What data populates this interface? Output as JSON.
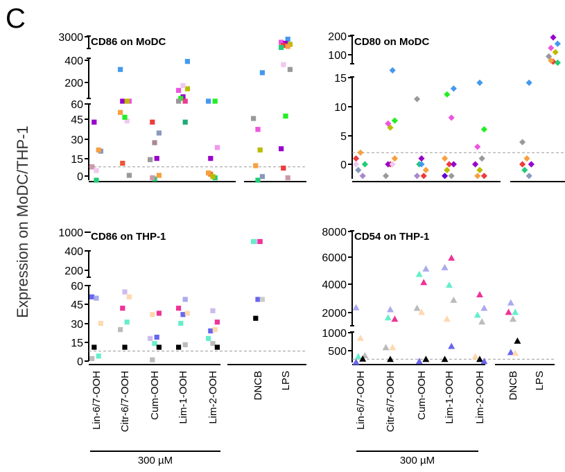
{
  "figure": {
    "panel_letter": "C",
    "ylabel": "Expression on MoDC/THP-1",
    "bracket_label": "300 µM",
    "categories": [
      "Lin-6/7-OOH",
      "Citr-6/7-OOH",
      "Cum-OOH",
      "Lim-1-OOH",
      "Lim-2-OOH",
      "DNCB",
      "LPS"
    ]
  },
  "chart_data": [
    {
      "type": "scatter",
      "title": "CD86 on MoDC",
      "marker": "square",
      "categories": [
        "Lin-6/7-OOH",
        "Citr-6/7-OOH",
        "Cum-OOH",
        "Lim-1-OOH",
        "Lim-2-OOH",
        "DNCB",
        "LPS"
      ],
      "y_axis_segments": [
        {
          "ticks": [
            0,
            15,
            30,
            45,
            60
          ]
        },
        {
          "ticks": [
            200,
            400
          ]
        },
        {
          "ticks": [
            3000
          ]
        }
      ],
      "threshold": 8,
      "points": [
        {
          "c": 0,
          "y": 8,
          "color": "#ee3b3b"
        },
        {
          "c": 0,
          "y": -3,
          "color": "#22cc77"
        },
        {
          "c": 0,
          "y": 21,
          "color": "#8899bb"
        },
        {
          "c": 0,
          "y": 45,
          "color": "#9900cc"
        },
        {
          "c": 0,
          "y": 22,
          "color": "#f7a040"
        },
        {
          "c": 0,
          "y": 8,
          "color": "#cc99aa"
        },
        {
          "c": 0,
          "y": 5,
          "color": "#f0c8f0"
        },
        {
          "c": 1,
          "y": 1,
          "color": "#999999"
        },
        {
          "c": 1,
          "y": 11,
          "color": "#ee5533"
        },
        {
          "c": 1,
          "y": 46,
          "color": "#f0c8f0"
        },
        {
          "c": 1,
          "y": 53,
          "color": "#f7a040"
        },
        {
          "c": 1,
          "y": 49,
          "color": "#22ee22"
        },
        {
          "c": 1,
          "y": 120,
          "color": "#ee55dd"
        },
        {
          "c": 1,
          "y": 95,
          "color": "#9900cc"
        },
        {
          "c": 1,
          "y": 95,
          "color": "#bbbb00"
        },
        {
          "c": 1,
          "y": 330,
          "color": "#4499ee"
        },
        {
          "c": 2,
          "y": -2,
          "color": "#22cc77"
        },
        {
          "c": 2,
          "y": 1,
          "color": "#f7a040"
        },
        {
          "c": 2,
          "y": -1,
          "color": "#cc99aa"
        },
        {
          "c": 2,
          "y": 15,
          "color": "#9900cc"
        },
        {
          "c": 2,
          "y": 14,
          "color": "#999999"
        },
        {
          "c": 2,
          "y": 28,
          "color": "#aa8899"
        },
        {
          "c": 2,
          "y": 36,
          "color": "#8899bb"
        },
        {
          "c": 2,
          "y": 45,
          "color": "#ee3b3b"
        },
        {
          "c": 3,
          "y": 45,
          "color": "#22aa77"
        },
        {
          "c": 3,
          "y": 200,
          "color": "#ee55dd"
        },
        {
          "c": 3,
          "y": 160,
          "color": "#9900cc"
        },
        {
          "c": 3,
          "y": 210,
          "color": "#bbbb00"
        },
        {
          "c": 3,
          "y": 150,
          "color": "#22ee22"
        },
        {
          "c": 3,
          "y": 110,
          "color": "#ee3b8b"
        },
        {
          "c": 3,
          "y": 100,
          "color": "#999999"
        },
        {
          "c": 3,
          "y": 230,
          "color": "#f0c8f0"
        },
        {
          "c": 3,
          "y": 380,
          "color": "#4499ee"
        },
        {
          "c": 4,
          "y": 2,
          "color": "#ee7733"
        },
        {
          "c": 4,
          "y": -1,
          "color": "#22cc77"
        },
        {
          "c": 4,
          "y": 3,
          "color": "#f7a040"
        },
        {
          "c": 4,
          "y": 0,
          "color": "#bbbb00"
        },
        {
          "c": 4,
          "y": 24,
          "color": "#ee99ee"
        },
        {
          "c": 4,
          "y": 15,
          "color": "#9900cc"
        },
        {
          "c": 4,
          "y": 100,
          "color": "#22ee22"
        },
        {
          "c": 4,
          "y": 110,
          "color": "#4499ee"
        },
        {
          "c": 5,
          "y": -3,
          "color": "#22cc77"
        },
        {
          "c": 5,
          "y": 0,
          "color": "#8899bb"
        },
        {
          "c": 5,
          "y": 9,
          "color": "#f7a040"
        },
        {
          "c": 5,
          "y": 22,
          "color": "#bbbb00"
        },
        {
          "c": 5,
          "y": 48,
          "color": "#999999"
        },
        {
          "c": 5,
          "y": 39,
          "color": "#ee55dd"
        },
        {
          "c": 5,
          "y": 310,
          "color": "#4499ee"
        },
        {
          "c": 6,
          "y": 7,
          "color": "#ee3b3b"
        },
        {
          "c": 6,
          "y": -1,
          "color": "#cc99aa"
        },
        {
          "c": 6,
          "y": 23,
          "color": "#9900cc"
        },
        {
          "c": 6,
          "y": 50,
          "color": "#22ee22"
        },
        {
          "c": 6,
          "y": 330,
          "color": "#999999"
        },
        {
          "c": 6,
          "y": 360,
          "color": "#f0c8f0"
        },
        {
          "c": 6,
          "y": 2700,
          "color": "#4499ee"
        },
        {
          "c": 6,
          "y": 2400,
          "color": "#ee55dd"
        },
        {
          "c": 6,
          "y": 2300,
          "color": "#9900cc"
        },
        {
          "c": 6,
          "y": 2200,
          "color": "#bbbb00"
        },
        {
          "c": 6,
          "y": 2100,
          "color": "#ee3b3b"
        },
        {
          "c": 6,
          "y": 2000,
          "color": "#f7a040"
        },
        {
          "c": 6,
          "y": 1900,
          "color": "#22cc77"
        }
      ]
    },
    {
      "type": "scatter",
      "title": "CD80 on MoDC",
      "marker": "diamond",
      "categories": [
        "Lin-6/7-OOH",
        "Citr-6/7-OOH",
        "Cum-OOH",
        "Lim-1-OOH",
        "Lim-2-OOH",
        "DNCB",
        "LPS"
      ],
      "y_axis_segments": [
        {
          "ticks": [
            0,
            5,
            10,
            15
          ]
        },
        {
          "ticks": [
            100,
            200
          ]
        }
      ],
      "threshold": 2,
      "points": [
        {
          "c": 0,
          "y": 1,
          "color": "#ee3b3b"
        },
        {
          "c": 0,
          "y": 2,
          "color": "#f7a040"
        },
        {
          "c": 0,
          "y": 0,
          "color": "#22cc77"
        },
        {
          "c": 0,
          "y": -1,
          "color": "#8899bb"
        },
        {
          "c": 0,
          "y": -2,
          "color": "#aa88cc"
        },
        {
          "c": 0,
          "y": 0,
          "color": "#f0c8f0"
        },
        {
          "c": 1,
          "y": 6.3,
          "color": "#bbbb00"
        },
        {
          "c": 1,
          "y": 7.5,
          "color": "#22ee22"
        },
        {
          "c": 1,
          "y": 7,
          "color": "#ee55dd"
        },
        {
          "c": 1,
          "y": 16.5,
          "color": "#4499ee"
        },
        {
          "c": 1,
          "y": -2,
          "color": "#999999"
        },
        {
          "c": 1,
          "y": 0,
          "color": "#ee3b3b"
        },
        {
          "c": 1,
          "y": 1,
          "color": "#f7a040"
        },
        {
          "c": 1,
          "y": 0,
          "color": "#9900cc"
        },
        {
          "c": 1,
          "y": 0,
          "color": "#f0c8f0"
        },
        {
          "c": 2,
          "y": 11.2,
          "color": "#999999"
        },
        {
          "c": 2,
          "y": 1,
          "color": "#9900cc"
        },
        {
          "c": 2,
          "y": -1,
          "color": "#f7a040"
        },
        {
          "c": 2,
          "y": 0,
          "color": "#22cc77"
        },
        {
          "c": 2,
          "y": -2,
          "color": "#ee3b3b"
        },
        {
          "c": 2,
          "y": -2,
          "color": "#aa88cc"
        },
        {
          "c": 2,
          "y": 0,
          "color": "#4499ee"
        },
        {
          "c": 3,
          "y": 13,
          "color": "#4499ee"
        },
        {
          "c": 3,
          "y": 12,
          "color": "#22ee22"
        },
        {
          "c": 3,
          "y": 8,
          "color": "#ee55dd"
        },
        {
          "c": 3,
          "y": 1,
          "color": "#f7a040"
        },
        {
          "c": 3,
          "y": 0,
          "color": "#ee3b3b"
        },
        {
          "c": 3,
          "y": 0,
          "color": "#9900cc"
        },
        {
          "c": 3,
          "y": -1,
          "color": "#bbbb00"
        },
        {
          "c": 3,
          "y": -2,
          "color": "#999999"
        },
        {
          "c": 3,
          "y": -2,
          "color": "#6600cc"
        },
        {
          "c": 4,
          "y": 14,
          "color": "#4499ee"
        },
        {
          "c": 4,
          "y": 6,
          "color": "#22ee22"
        },
        {
          "c": 4,
          "y": 3,
          "color": "#ee55dd"
        },
        {
          "c": 4,
          "y": 1,
          "color": "#999999"
        },
        {
          "c": 4,
          "y": 0,
          "color": "#9900cc"
        },
        {
          "c": 4,
          "y": -1,
          "color": "#bbbb00"
        },
        {
          "c": 4,
          "y": -2,
          "color": "#ee3b3b"
        },
        {
          "c": 4,
          "y": -2,
          "color": "#f7a040"
        },
        {
          "c": 5,
          "y": 14,
          "color": "#4499ee"
        },
        {
          "c": 5,
          "y": 3.8,
          "color": "#999999"
        },
        {
          "c": 5,
          "y": 1,
          "color": "#f7a040"
        },
        {
          "c": 5,
          "y": 0,
          "color": "#9900cc"
        },
        {
          "c": 5,
          "y": -1,
          "color": "#22cc77"
        },
        {
          "c": 5,
          "y": -2,
          "color": "#8899bb"
        },
        {
          "c": 5,
          "y": 0,
          "color": "#ee3b3b"
        },
        {
          "c": 6,
          "y": 190,
          "color": "#9900cc"
        },
        {
          "c": 6,
          "y": 160,
          "color": "#4499ee"
        },
        {
          "c": 6,
          "y": 140,
          "color": "#ee55dd"
        },
        {
          "c": 6,
          "y": 120,
          "color": "#bbbb00"
        },
        {
          "c": 6,
          "y": 100,
          "color": "#999999"
        },
        {
          "c": 6,
          "y": 75,
          "color": "#ee3b3b"
        },
        {
          "c": 6,
          "y": 70,
          "color": "#22cc77"
        },
        {
          "c": 6,
          "y": 80,
          "color": "#f7a040"
        }
      ]
    },
    {
      "type": "scatter",
      "title": "CD86 on THP-1",
      "marker": "square",
      "categories": [
        "Lin-6/7-OOH",
        "Citr-6/7-OOH",
        "Cum-OOH",
        "Lim-1-OOH",
        "Lim-2-OOH",
        "DNCB",
        "LPS"
      ],
      "y_axis_segments": [
        {
          "ticks": [
            0,
            15,
            30,
            45,
            60
          ]
        },
        {
          "ticks": [
            200,
            400
          ]
        },
        {
          "ticks": [
            1000
          ]
        }
      ],
      "threshold": 8,
      "points": [
        {
          "c": 0,
          "y": 51,
          "color": "#6666ee"
        },
        {
          "c": 0,
          "y": 50,
          "color": "#aaaaee"
        },
        {
          "c": 0,
          "y": 30,
          "color": "#ffd8b0"
        },
        {
          "c": 0,
          "y": 11,
          "color": "#000000"
        },
        {
          "c": 0,
          "y": 4,
          "color": "#66eecc"
        },
        {
          "c": 0,
          "y": 2,
          "color": "#bbbbbb"
        },
        {
          "c": 1,
          "y": 55,
          "color": "#ccbbee"
        },
        {
          "c": 1,
          "y": 51,
          "color": "#ffd8b0"
        },
        {
          "c": 1,
          "y": 42,
          "color": "#ee3399"
        },
        {
          "c": 1,
          "y": 31,
          "color": "#66eecc"
        },
        {
          "c": 1,
          "y": 25,
          "color": "#bbbbbb"
        },
        {
          "c": 1,
          "y": 11,
          "color": "#000000"
        },
        {
          "c": 2,
          "y": 38,
          "color": "#ee3399"
        },
        {
          "c": 2,
          "y": 37,
          "color": "#ffd8b0"
        },
        {
          "c": 2,
          "y": 19,
          "color": "#6666ee"
        },
        {
          "c": 2,
          "y": 18,
          "color": "#ccbbee"
        },
        {
          "c": 2,
          "y": 14,
          "color": "#66eecc"
        },
        {
          "c": 2,
          "y": 11,
          "color": "#000000"
        },
        {
          "c": 2,
          "y": 1,
          "color": "#bbbbbb"
        },
        {
          "c": 3,
          "y": 49,
          "color": "#aaaaee"
        },
        {
          "c": 3,
          "y": 42,
          "color": "#ee3399"
        },
        {
          "c": 3,
          "y": 37,
          "color": "#6666ee"
        },
        {
          "c": 3,
          "y": 38,
          "color": "#ffd8b0"
        },
        {
          "c": 3,
          "y": 30,
          "color": "#66eecc"
        },
        {
          "c": 3,
          "y": 13,
          "color": "#bbbbbb"
        },
        {
          "c": 3,
          "y": 11,
          "color": "#000000"
        },
        {
          "c": 4,
          "y": 40,
          "color": "#ccbbee"
        },
        {
          "c": 4,
          "y": 31,
          "color": "#ee3399"
        },
        {
          "c": 4,
          "y": 24,
          "color": "#6666ee"
        },
        {
          "c": 4,
          "y": 25,
          "color": "#ffd8b0"
        },
        {
          "c": 4,
          "y": 18,
          "color": "#66eecc"
        },
        {
          "c": 4,
          "y": 14,
          "color": "#bbbbbb"
        },
        {
          "c": 4,
          "y": 11,
          "color": "#000000"
        },
        {
          "c": 5,
          "y": 700,
          "color": "#ccbbee"
        },
        {
          "c": 5,
          "y": 720,
          "color": "#ee3399"
        },
        {
          "c": 5,
          "y": 690,
          "color": "#66eecc"
        },
        {
          "c": 5,
          "y": 49,
          "color": "#6666ee"
        },
        {
          "c": 5,
          "y": 49,
          "color": "#cccccc"
        },
        {
          "c": 5,
          "y": 34,
          "color": "#000000"
        }
      ]
    },
    {
      "type": "scatter",
      "title": "CD54 on THP-1",
      "marker": "triangle",
      "categories": [
        "Lin-6/7-OOH",
        "Citr-6/7-OOH",
        "Cum-OOH",
        "Lim-1-OOH",
        "Lim-2-OOH",
        "DNCB",
        "LPS"
      ],
      "y_axis_segments": [
        {
          "ticks": [
            500,
            1000
          ]
        },
        {
          "ticks": [
            2000,
            4000,
            6000,
            8000
          ]
        }
      ],
      "threshold": 330,
      "points": [
        {
          "c": 0,
          "y": 2350,
          "color": "#aaaaee"
        },
        {
          "c": 0,
          "y": 850,
          "color": "#ffd8b0"
        },
        {
          "c": 0,
          "y": 420,
          "color": "#bbbbbb"
        },
        {
          "c": 0,
          "y": 400,
          "color": "#66eecc"
        },
        {
          "c": 0,
          "y": 340,
          "color": "#000000"
        },
        {
          "c": 0,
          "y": 260,
          "color": "#6666ee"
        },
        {
          "c": 1,
          "y": 2200,
          "color": "#aaaaee"
        },
        {
          "c": 1,
          "y": 1500,
          "color": "#ee3399"
        },
        {
          "c": 1,
          "y": 1600,
          "color": "#66eecc"
        },
        {
          "c": 1,
          "y": 620,
          "color": "#ffd8b0"
        },
        {
          "c": 1,
          "y": 620,
          "color": "#bbbbbb"
        },
        {
          "c": 1,
          "y": 330,
          "color": "#000000"
        },
        {
          "c": 2,
          "y": 5200,
          "color": "#aaaaee"
        },
        {
          "c": 2,
          "y": 4800,
          "color": "#66eecc"
        },
        {
          "c": 2,
          "y": 4200,
          "color": "#ee3399"
        },
        {
          "c": 2,
          "y": 2300,
          "color": "#bbbbbb"
        },
        {
          "c": 2,
          "y": 2000,
          "color": "#ffd8b0"
        },
        {
          "c": 2,
          "y": 330,
          "color": "#000000"
        },
        {
          "c": 2,
          "y": 280,
          "color": "#6666ee"
        },
        {
          "c": 3,
          "y": 6000,
          "color": "#ee3399"
        },
        {
          "c": 3,
          "y": 5300,
          "color": "#aaaaee"
        },
        {
          "c": 3,
          "y": 4000,
          "color": "#66eecc"
        },
        {
          "c": 3,
          "y": 2900,
          "color": "#bbbbbb"
        },
        {
          "c": 3,
          "y": 1500,
          "color": "#ffd8b0"
        },
        {
          "c": 3,
          "y": 650,
          "color": "#6666ee"
        },
        {
          "c": 3,
          "y": 330,
          "color": "#000000"
        },
        {
          "c": 4,
          "y": 3300,
          "color": "#ee3399"
        },
        {
          "c": 4,
          "y": 2300,
          "color": "#aaaaee"
        },
        {
          "c": 4,
          "y": 1800,
          "color": "#66eecc"
        },
        {
          "c": 4,
          "y": 1300,
          "color": "#bbbbbb"
        },
        {
          "c": 4,
          "y": 400,
          "color": "#ffd8b0"
        },
        {
          "c": 4,
          "y": 330,
          "color": "#000000"
        },
        {
          "c": 4,
          "y": 280,
          "color": "#6666ee"
        },
        {
          "c": 5,
          "y": 2700,
          "color": "#aaaaee"
        },
        {
          "c": 5,
          "y": 2000,
          "color": "#66eecc"
        },
        {
          "c": 5,
          "y": 2000,
          "color": "#ee3399"
        },
        {
          "c": 5,
          "y": 1500,
          "color": "#bbbbbb"
        },
        {
          "c": 5,
          "y": 780,
          "color": "#000000"
        },
        {
          "c": 5,
          "y": 500,
          "color": "#6666ee"
        },
        {
          "c": 5,
          "y": 480,
          "color": "#ffd8b0"
        }
      ]
    }
  ]
}
